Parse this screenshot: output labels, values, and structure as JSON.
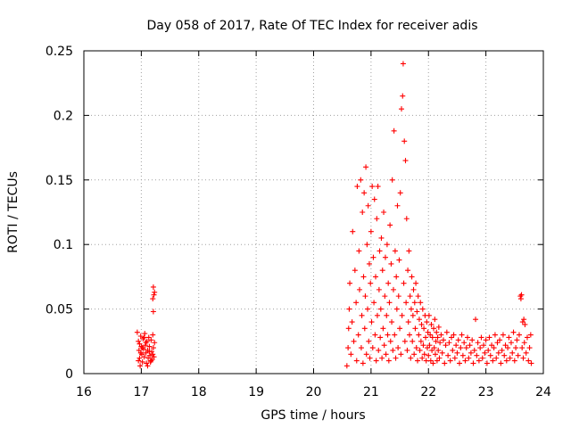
{
  "chart_data": {
    "type": "scatter",
    "title": "Day 058 of 2017, Rate Of TEC Index for receiver adis",
    "xlabel": "GPS time / hours",
    "ylabel": "ROTI / TECUs",
    "xlim": [
      16,
      24
    ],
    "ylim": [
      0,
      0.25
    ],
    "x_ticks": [
      "16",
      "17",
      "18",
      "19",
      "20",
      "21",
      "22",
      "23",
      "24"
    ],
    "y_ticks": [
      "0",
      "0.05",
      "0.1",
      "0.15",
      "0.2",
      "0.25"
    ],
    "grid": true,
    "marker": "+",
    "color": "#ff0000",
    "series": [
      {
        "name": "ROTI",
        "points": [
          [
            16.93,
            0.032
          ],
          [
            16.95,
            0.025
          ],
          [
            16.96,
            0.018
          ],
          [
            16.97,
            0.012
          ],
          [
            16.98,
            0.006
          ],
          [
            16.99,
            0.029
          ],
          [
            17.0,
            0.021
          ],
          [
            17.01,
            0.015
          ],
          [
            17.02,
            0.009
          ],
          [
            17.03,
            0.027
          ],
          [
            17.04,
            0.019
          ],
          [
            17.05,
            0.013
          ],
          [
            17.06,
            0.031
          ],
          [
            17.07,
            0.022
          ],
          [
            17.08,
            0.016
          ],
          [
            17.09,
            0.008
          ],
          [
            17.1,
            0.025
          ],
          [
            17.11,
            0.018
          ],
          [
            17.12,
            0.012
          ],
          [
            17.13,
            0.028
          ],
          [
            17.14,
            0.021
          ],
          [
            17.15,
            0.014
          ],
          [
            17.16,
            0.009
          ],
          [
            17.17,
            0.026
          ],
          [
            17.18,
            0.017
          ],
          [
            17.19,
            0.011
          ],
          [
            17.2,
            0.03
          ],
          [
            17.21,
            0.02
          ],
          [
            17.22,
            0.013
          ],
          [
            17.23,
            0.024
          ],
          [
            16.95,
            0.01
          ],
          [
            16.97,
            0.023
          ],
          [
            16.99,
            0.016
          ],
          [
            17.02,
            0.02
          ],
          [
            17.05,
            0.028
          ],
          [
            17.08,
            0.024
          ],
          [
            17.11,
            0.006
          ],
          [
            17.14,
            0.017
          ],
          [
            17.17,
            0.01
          ],
          [
            17.2,
            0.015
          ],
          [
            17.21,
            0.067
          ],
          [
            17.22,
            0.061
          ],
          [
            17.2,
            0.058
          ],
          [
            17.21,
            0.048
          ],
          [
            17.23,
            0.063
          ],
          [
            20.58,
            0.006
          ],
          [
            20.6,
            0.02
          ],
          [
            20.61,
            0.035
          ],
          [
            20.62,
            0.05
          ],
          [
            20.63,
            0.07
          ],
          [
            20.65,
            0.015
          ],
          [
            20.67,
            0.04
          ],
          [
            20.68,
            0.11
          ],
          [
            20.7,
            0.025
          ],
          [
            20.72,
            0.08
          ],
          [
            20.74,
            0.055
          ],
          [
            20.75,
            0.01
          ],
          [
            20.76,
            0.145
          ],
          [
            20.78,
            0.03
          ],
          [
            20.79,
            0.095
          ],
          [
            20.8,
            0.065
          ],
          [
            20.82,
            0.15
          ],
          [
            20.83,
            0.02
          ],
          [
            20.84,
            0.045
          ],
          [
            20.85,
            0.125
          ],
          [
            20.86,
            0.008
          ],
          [
            20.87,
            0.075
          ],
          [
            20.88,
            0.14
          ],
          [
            20.89,
            0.035
          ],
          [
            20.9,
            0.06
          ],
          [
            20.91,
            0.16
          ],
          [
            20.92,
            0.015
          ],
          [
            20.93,
            0.1
          ],
          [
            20.94,
            0.05
          ],
          [
            20.95,
            0.13
          ],
          [
            20.96,
            0.025
          ],
          [
            20.97,
            0.085
          ],
          [
            20.98,
            0.012
          ],
          [
            20.99,
            0.07
          ],
          [
            21.0,
            0.11
          ],
          [
            21.01,
            0.04
          ],
          [
            21.02,
            0.145
          ],
          [
            21.03,
            0.02
          ],
          [
            21.04,
            0.09
          ],
          [
            21.05,
            0.055
          ],
          [
            21.06,
            0.135
          ],
          [
            21.07,
            0.03
          ],
          [
            21.08,
            0.075
          ],
          [
            21.09,
            0.01
          ],
          [
            21.1,
            0.12
          ],
          [
            21.11,
            0.045
          ],
          [
            21.12,
            0.145
          ],
          [
            21.13,
            0.018
          ],
          [
            21.14,
            0.065
          ],
          [
            21.15,
            0.095
          ],
          [
            21.16,
            0.028
          ],
          [
            21.17,
            0.05
          ],
          [
            21.18,
            0.105
          ],
          [
            21.19,
            0.012
          ],
          [
            21.2,
            0.08
          ],
          [
            21.21,
            0.035
          ],
          [
            21.22,
            0.125
          ],
          [
            21.23,
            0.022
          ],
          [
            21.24,
            0.06
          ],
          [
            21.25,
            0.09
          ],
          [
            21.26,
            0.015
          ],
          [
            21.27,
            0.045
          ],
          [
            21.28,
            0.1
          ],
          [
            21.29,
            0.03
          ],
          [
            21.3,
            0.07
          ],
          [
            21.31,
            0.01
          ],
          [
            21.32,
            0.055
          ],
          [
            21.33,
            0.115
          ],
          [
            21.34,
            0.025
          ],
          [
            21.35,
            0.085
          ],
          [
            21.36,
            0.04
          ],
          [
            21.37,
            0.15
          ],
          [
            21.38,
            0.018
          ],
          [
            21.39,
            0.065
          ],
          [
            21.4,
            0.188
          ],
          [
            21.41,
            0.03
          ],
          [
            21.42,
            0.095
          ],
          [
            21.43,
            0.012
          ],
          [
            21.44,
            0.075
          ],
          [
            21.45,
            0.05
          ],
          [
            21.46,
            0.13
          ],
          [
            21.47,
            0.02
          ],
          [
            21.48,
            0.06
          ],
          [
            21.49,
            0.088
          ],
          [
            21.5,
            0.035
          ],
          [
            21.51,
            0.14
          ],
          [
            21.52,
            0.015
          ],
          [
            21.53,
            0.205
          ],
          [
            21.54,
            0.045
          ],
          [
            21.55,
            0.215
          ],
          [
            21.56,
            0.24
          ],
          [
            21.57,
            0.07
          ],
          [
            21.58,
            0.18
          ],
          [
            21.59,
            0.025
          ],
          [
            21.6,
            0.165
          ],
          [
            21.61,
            0.055
          ],
          [
            21.62,
            0.12
          ],
          [
            21.63,
            0.018
          ],
          [
            21.64,
            0.08
          ],
          [
            21.65,
            0.04
          ],
          [
            21.66,
            0.095
          ],
          [
            21.67,
            0.03
          ],
          [
            21.68,
            0.06
          ],
          [
            21.69,
            0.012
          ],
          [
            21.7,
            0.05
          ],
          [
            21.71,
            0.075
          ],
          [
            21.72,
            0.025
          ],
          [
            21.73,
            0.045
          ],
          [
            21.74,
            0.065
          ],
          [
            21.75,
            0.015
          ],
          [
            21.76,
            0.055
          ],
          [
            21.77,
            0.035
          ],
          [
            21.78,
            0.07
          ],
          [
            21.79,
            0.02
          ],
          [
            21.8,
            0.048
          ],
          [
            21.81,
            0.01
          ],
          [
            21.82,
            0.06
          ],
          [
            21.83,
            0.03
          ],
          [
            21.84,
            0.042
          ],
          [
            21.85,
            0.018
          ],
          [
            21.86,
            0.055
          ],
          [
            21.87,
            0.025
          ],
          [
            21.88,
            0.038
          ],
          [
            21.89,
            0.012
          ],
          [
            21.9,
            0.05
          ],
          [
            21.91,
            0.022
          ],
          [
            21.92,
            0.035
          ],
          [
            21.93,
            0.015
          ],
          [
            21.94,
            0.045
          ],
          [
            21.95,
            0.028
          ],
          [
            21.96,
            0.01
          ],
          [
            21.97,
            0.04
          ],
          [
            21.98,
            0.02
          ],
          [
            21.99,
            0.032
          ],
          [
            22.0,
            0.014
          ],
          [
            22.01,
            0.045
          ],
          [
            22.02,
            0.022
          ],
          [
            22.03,
            0.03
          ],
          [
            22.04,
            0.01
          ],
          [
            22.05,
            0.038
          ],
          [
            22.06,
            0.018
          ],
          [
            22.07,
            0.028
          ],
          [
            22.08,
            0.008
          ],
          [
            22.09,
            0.035
          ],
          [
            22.1,
            0.02
          ],
          [
            22.11,
            0.042
          ],
          [
            22.12,
            0.015
          ],
          [
            22.13,
            0.025
          ],
          [
            22.14,
            0.032
          ],
          [
            22.15,
            0.01
          ],
          [
            22.16,
            0.028
          ],
          [
            22.17,
            0.018
          ],
          [
            22.18,
            0.036
          ],
          [
            22.19,
            0.012
          ],
          [
            22.2,
            0.024
          ],
          [
            22.22,
            0.03
          ],
          [
            22.24,
            0.016
          ],
          [
            22.26,
            0.026
          ],
          [
            22.28,
            0.008
          ],
          [
            22.3,
            0.022
          ],
          [
            22.32,
            0.032
          ],
          [
            22.34,
            0.014
          ],
          [
            22.36,
            0.024
          ],
          [
            22.38,
            0.01
          ],
          [
            22.4,
            0.028
          ],
          [
            22.42,
            0.018
          ],
          [
            22.44,
            0.03
          ],
          [
            22.46,
            0.012
          ],
          [
            22.48,
            0.022
          ],
          [
            22.5,
            0.016
          ],
          [
            22.52,
            0.026
          ],
          [
            22.54,
            0.008
          ],
          [
            22.56,
            0.02
          ],
          [
            22.58,
            0.03
          ],
          [
            22.6,
            0.014
          ],
          [
            22.62,
            0.024
          ],
          [
            22.64,
            0.01
          ],
          [
            22.66,
            0.02
          ],
          [
            22.68,
            0.028
          ],
          [
            22.7,
            0.012
          ],
          [
            22.72,
            0.022
          ],
          [
            22.74,
            0.016
          ],
          [
            22.76,
            0.026
          ],
          [
            22.78,
            0.008
          ],
          [
            22.8,
            0.018
          ],
          [
            22.82,
            0.042
          ],
          [
            22.84,
            0.014
          ],
          [
            22.86,
            0.024
          ],
          [
            22.88,
            0.01
          ],
          [
            22.9,
            0.02
          ],
          [
            22.92,
            0.028
          ],
          [
            22.94,
            0.012
          ],
          [
            22.96,
            0.022
          ],
          [
            22.98,
            0.016
          ],
          [
            23.0,
            0.026
          ],
          [
            23.02,
            0.008
          ],
          [
            23.04,
            0.018
          ],
          [
            23.06,
            0.028
          ],
          [
            23.08,
            0.014
          ],
          [
            23.1,
            0.022
          ],
          [
            23.12,
            0.01
          ],
          [
            23.14,
            0.02
          ],
          [
            23.16,
            0.03
          ],
          [
            23.18,
            0.012
          ],
          [
            23.2,
            0.024
          ],
          [
            23.22,
            0.016
          ],
          [
            23.24,
            0.026
          ],
          [
            23.26,
            0.008
          ],
          [
            23.28,
            0.018
          ],
          [
            23.3,
            0.03
          ],
          [
            23.32,
            0.014
          ],
          [
            23.34,
            0.022
          ],
          [
            23.36,
            0.01
          ],
          [
            23.38,
            0.02
          ],
          [
            23.4,
            0.028
          ],
          [
            23.42,
            0.012
          ],
          [
            23.44,
            0.024
          ],
          [
            23.46,
            0.016
          ],
          [
            23.48,
            0.032
          ],
          [
            23.5,
            0.01
          ],
          [
            23.52,
            0.02
          ],
          [
            23.54,
            0.026
          ],
          [
            23.56,
            0.014
          ],
          [
            23.58,
            0.03
          ],
          [
            23.6,
            0.06
          ],
          [
            23.61,
            0.058
          ],
          [
            23.62,
            0.061
          ],
          [
            23.63,
            0.02
          ],
          [
            23.64,
            0.04
          ],
          [
            23.65,
            0.012
          ],
          [
            23.66,
            0.042
          ],
          [
            23.67,
            0.024
          ],
          [
            23.68,
            0.038
          ],
          [
            23.7,
            0.016
          ],
          [
            23.72,
            0.028
          ],
          [
            23.74,
            0.01
          ],
          [
            23.76,
            0.02
          ],
          [
            23.78,
            0.03
          ],
          [
            23.79,
            0.008
          ]
        ]
      }
    ]
  }
}
